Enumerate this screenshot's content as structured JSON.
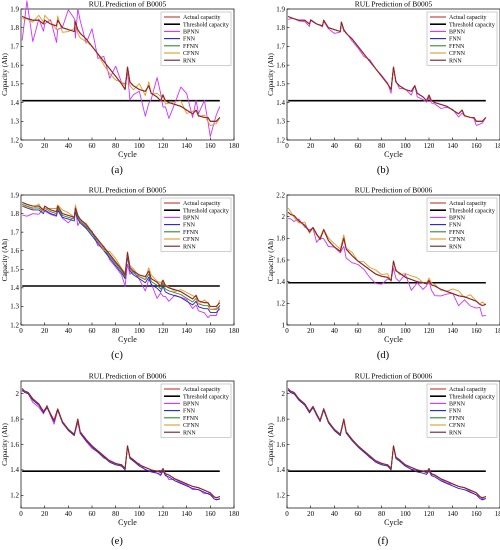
{
  "colors": {
    "actual": "#c0392b",
    "threshold": "#000000",
    "bpnn": "#cc33ff",
    "fnn": "#2222cc",
    "ffnn": "#2e8b2e",
    "cfnn": "#e09a22",
    "rnn": "#6b1f2b"
  },
  "chart_data": [
    {
      "panel_label": "(a)",
      "type": "line",
      "title": "RUL Prediction of B0005",
      "xlabel": "Cycle",
      "ylabel": "Capacity (Ah)",
      "xlim": [
        0,
        180
      ],
      "ylim": [
        1.2,
        1.9
      ],
      "xticks": [
        "0",
        "20",
        "40",
        "60",
        "80",
        "100",
        "120",
        "140",
        "160",
        "180"
      ],
      "yticks": [
        "1.2",
        "1.3",
        "1.4",
        "1.5",
        "1.6",
        "1.7",
        "1.8",
        "1.9"
      ],
      "threshold": 1.41,
      "legend_position": "top-right",
      "legend": [
        "Actual capacity",
        "Threshold capacity",
        "BPNN",
        "FNN",
        "FFNN",
        "CFNN",
        "RNN"
      ],
      "x": [
        1,
        5,
        10,
        15,
        19,
        20,
        25,
        30,
        31,
        35,
        40,
        45,
        46,
        48,
        50,
        55,
        60,
        65,
        70,
        75,
        80,
        85,
        88,
        90,
        92,
        95,
        100,
        105,
        108,
        110,
        115,
        118,
        120,
        122,
        125,
        130,
        135,
        140,
        145,
        148,
        150,
        155,
        158,
        160,
        165,
        168
      ],
      "actual": [
        1.86,
        1.85,
        1.84,
        1.84,
        1.82,
        1.84,
        1.82,
        1.81,
        1.84,
        1.8,
        1.79,
        1.78,
        1.83,
        1.79,
        1.77,
        1.74,
        1.7,
        1.66,
        1.62,
        1.58,
        1.54,
        1.5,
        1.47,
        1.59,
        1.51,
        1.49,
        1.47,
        1.46,
        1.49,
        1.45,
        1.43,
        1.41,
        1.44,
        1.41,
        1.4,
        1.39,
        1.38,
        1.36,
        1.34,
        1.36,
        1.33,
        1.32,
        1.32,
        1.3,
        1.3,
        1.32
      ],
      "spikes": {
        "bpnn": 0.12,
        "fnn": 0.0,
        "cfnn": 0.03
      },
      "offsets": {
        "bpnn": -0.008,
        "fnn": 0.0,
        "ffnn": 0.0,
        "cfnn": 0.002,
        "rnn": 0.0
      }
    },
    {
      "panel_label": "(b)",
      "type": "line",
      "title": "RUL Prediction of B0005",
      "xlabel": "Cycle",
      "ylabel": "Capacity (Ah)",
      "xlim": [
        0,
        180
      ],
      "ylim": [
        1.2,
        1.9
      ],
      "xticks": [
        "0",
        "20",
        "40",
        "60",
        "80",
        "100",
        "120",
        "140",
        "160",
        "180"
      ],
      "yticks": [
        "1.2",
        "1.3",
        "1.4",
        "1.5",
        "1.6",
        "1.7",
        "1.8",
        "1.9"
      ],
      "threshold": 1.41,
      "legend_position": "top-right",
      "legend": [
        "Actual capacity",
        "Threshold capacity",
        "BPNN",
        "FNN",
        "FFNN",
        "CFNN",
        "RNN"
      ],
      "x": [
        1,
        5,
        10,
        15,
        19,
        20,
        25,
        30,
        31,
        35,
        40,
        45,
        46,
        48,
        50,
        55,
        60,
        65,
        70,
        75,
        80,
        85,
        88,
        90,
        92,
        95,
        100,
        105,
        108,
        110,
        115,
        118,
        120,
        122,
        125,
        130,
        135,
        140,
        145,
        148,
        150,
        155,
        158,
        160,
        165,
        168
      ],
      "actual": [
        1.86,
        1.85,
        1.84,
        1.84,
        1.82,
        1.84,
        1.82,
        1.81,
        1.84,
        1.8,
        1.79,
        1.78,
        1.83,
        1.79,
        1.77,
        1.74,
        1.7,
        1.66,
        1.62,
        1.58,
        1.54,
        1.5,
        1.47,
        1.59,
        1.51,
        1.49,
        1.47,
        1.46,
        1.49,
        1.45,
        1.43,
        1.41,
        1.44,
        1.41,
        1.4,
        1.39,
        1.38,
        1.36,
        1.34,
        1.36,
        1.33,
        1.32,
        1.32,
        1.3,
        1.3,
        1.32
      ],
      "spikes": {
        "bpnn": 0.015,
        "fnn": 0.0,
        "cfnn": 0.0
      },
      "offsets": {
        "bpnn": -0.006,
        "fnn": 0.0,
        "ffnn": 0.0,
        "cfnn": 0.0,
        "rnn": 0.0
      }
    },
    {
      "panel_label": "(c)",
      "type": "line",
      "title": "RUL Prediction of B0005",
      "xlabel": "Cycle",
      "ylabel": "Capacity (Ah)",
      "xlim": [
        0,
        180
      ],
      "ylim": [
        1.2,
        1.9
      ],
      "xticks": [
        "0",
        "20",
        "40",
        "60",
        "80",
        "100",
        "120",
        "140",
        "160",
        "180"
      ],
      "yticks": [
        "1.2",
        "1.3",
        "1.4",
        "1.5",
        "1.6",
        "1.7",
        "1.8",
        "1.9"
      ],
      "threshold": 1.41,
      "legend_position": "top-right",
      "legend": [
        "Actual capacity",
        "Threshold capacity",
        "BPNN",
        "FNN",
        "FFNN",
        "CFNN",
        "RNN"
      ],
      "x": [
        1,
        5,
        10,
        15,
        19,
        20,
        25,
        30,
        31,
        35,
        40,
        45,
        46,
        48,
        50,
        55,
        60,
        65,
        70,
        75,
        80,
        85,
        88,
        90,
        92,
        95,
        100,
        105,
        108,
        110,
        115,
        118,
        120,
        122,
        125,
        130,
        135,
        140,
        145,
        148,
        150,
        155,
        158,
        160,
        165,
        168
      ],
      "actual": [
        1.86,
        1.85,
        1.84,
        1.84,
        1.82,
        1.84,
        1.82,
        1.81,
        1.84,
        1.8,
        1.79,
        1.78,
        1.83,
        1.79,
        1.77,
        1.74,
        1.7,
        1.66,
        1.62,
        1.58,
        1.54,
        1.5,
        1.47,
        1.59,
        1.51,
        1.49,
        1.47,
        1.46,
        1.49,
        1.45,
        1.43,
        1.41,
        1.44,
        1.41,
        1.4,
        1.39,
        1.38,
        1.36,
        1.34,
        1.36,
        1.33,
        1.32,
        1.32,
        1.3,
        1.3,
        1.32
      ],
      "spikes": {
        "bpnn": 0.04,
        "fnn": 0.0,
        "cfnn": 0.02
      },
      "offsets": {
        "bpnn": -0.03,
        "fnn": -0.02,
        "ffnn": -0.01,
        "cfnn": 0.0,
        "rnn": 0.0
      }
    },
    {
      "panel_label": "(d)",
      "type": "line",
      "title": "RUL Prediction of B0006",
      "xlabel": "Cycle",
      "ylabel": "Capacity (Ah)",
      "xlim": [
        0,
        180
      ],
      "ylim": [
        1.0,
        2.2
      ],
      "xticks": [
        "0",
        "20",
        "40",
        "60",
        "80",
        "100",
        "120",
        "140",
        "160",
        "180"
      ],
      "yticks": [
        "1",
        "1.2",
        "1.4",
        "1.6",
        "1.8",
        "2",
        "2.2"
      ],
      "threshold": 1.39,
      "legend_position": "top-right",
      "legend": [
        "Actual capacity",
        "Threshold capacity",
        "BPNN",
        "FNN",
        "FFNN",
        "CFNN",
        "RNN"
      ],
      "x": [
        1,
        3,
        6,
        10,
        15,
        19,
        22,
        25,
        28,
        31,
        35,
        40,
        45,
        48,
        50,
        55,
        60,
        65,
        70,
        75,
        80,
        85,
        88,
        90,
        92,
        95,
        100,
        105,
        110,
        115,
        118,
        120,
        122,
        125,
        130,
        135,
        140,
        145,
        150,
        155,
        160,
        163,
        165,
        168
      ],
      "actual": [
        2.04,
        2.02,
        2.01,
        1.96,
        1.92,
        1.86,
        1.9,
        1.84,
        1.79,
        1.88,
        1.78,
        1.72,
        1.68,
        1.8,
        1.7,
        1.64,
        1.59,
        1.55,
        1.51,
        1.47,
        1.45,
        1.44,
        1.41,
        1.59,
        1.5,
        1.48,
        1.44,
        1.42,
        1.4,
        1.39,
        1.38,
        1.41,
        1.37,
        1.36,
        1.33,
        1.31,
        1.29,
        1.27,
        1.26,
        1.24,
        1.22,
        1.19,
        1.18,
        1.19
      ],
      "spikes": {
        "bpnn": 0.06,
        "fnn": 0.0,
        "cfnn": 0.03
      },
      "offsets": {
        "bpnn": -0.03,
        "fnn": 0.0,
        "ffnn": 0.0,
        "cfnn": 0.01,
        "rnn": 0.0
      }
    },
    {
      "panel_label": "(e)",
      "type": "line",
      "title": "RUL Prediction of B0006",
      "xlabel": "Cycle",
      "ylabel": "Capacity (Ah)",
      "xlim": [
        0,
        180
      ],
      "ylim": [
        1.1,
        2.1
      ],
      "xticks": [
        "0",
        "20",
        "40",
        "60",
        "80",
        "100",
        "120",
        "140",
        "160",
        "180"
      ],
      "yticks": [
        "1.2",
        "1.4",
        "1.6",
        "1.8",
        "2"
      ],
      "threshold": 1.39,
      "legend_position": "top-right",
      "legend": [
        "Actual capacity",
        "Threshold capacity",
        "BPNN",
        "FNN",
        "FFNN",
        "CFNN",
        "RNN"
      ],
      "x": [
        1,
        3,
        6,
        10,
        15,
        19,
        22,
        25,
        28,
        31,
        35,
        40,
        45,
        48,
        50,
        55,
        60,
        65,
        70,
        75,
        80,
        85,
        88,
        90,
        92,
        95,
        100,
        105,
        110,
        115,
        118,
        120,
        122,
        125,
        130,
        135,
        140,
        145,
        150,
        155,
        160,
        163,
        165,
        168
      ],
      "actual": [
        2.04,
        2.02,
        2.01,
        1.96,
        1.92,
        1.86,
        1.9,
        1.84,
        1.79,
        1.88,
        1.78,
        1.72,
        1.68,
        1.8,
        1.7,
        1.64,
        1.59,
        1.55,
        1.51,
        1.47,
        1.45,
        1.44,
        1.41,
        1.59,
        1.5,
        1.48,
        1.44,
        1.42,
        1.4,
        1.39,
        1.38,
        1.41,
        1.37,
        1.36,
        1.33,
        1.31,
        1.29,
        1.27,
        1.26,
        1.24,
        1.22,
        1.19,
        1.18,
        1.19
      ],
      "spikes": {
        "bpnn": 0.02,
        "fnn": 0.0,
        "cfnn": 0.0
      },
      "offsets": {
        "bpnn": -0.01,
        "fnn": -0.01,
        "ffnn": 0.0,
        "cfnn": 0.0,
        "rnn": 0.0
      }
    },
    {
      "panel_label": "(f)",
      "type": "line",
      "title": "RUL Prediction of B0006",
      "xlabel": "Cycle",
      "ylabel": "Capacity (Ah)",
      "xlim": [
        0,
        180
      ],
      "ylim": [
        1.1,
        2.1
      ],
      "xticks": [
        "0",
        "20",
        "40",
        "60",
        "80",
        "100",
        "120",
        "140",
        "160",
        "180"
      ],
      "yticks": [
        "1.2",
        "1.4",
        "1.6",
        "1.8",
        "2"
      ],
      "threshold": 1.39,
      "legend_position": "top-right",
      "legend": [
        "Actual capacity",
        "Threshold capacity",
        "BPNN",
        "FNN",
        "FFNN",
        "CFNN",
        "RNN"
      ],
      "x": [
        1,
        3,
        6,
        10,
        15,
        19,
        22,
        25,
        28,
        31,
        35,
        40,
        45,
        48,
        50,
        55,
        60,
        65,
        70,
        75,
        80,
        85,
        88,
        90,
        92,
        95,
        100,
        105,
        110,
        115,
        118,
        120,
        122,
        125,
        130,
        135,
        140,
        145,
        150,
        155,
        160,
        163,
        165,
        168
      ],
      "actual": [
        2.04,
        2.02,
        2.01,
        1.96,
        1.92,
        1.86,
        1.9,
        1.84,
        1.79,
        1.88,
        1.78,
        1.72,
        1.68,
        1.8,
        1.7,
        1.64,
        1.59,
        1.55,
        1.51,
        1.47,
        1.45,
        1.44,
        1.41,
        1.59,
        1.5,
        1.48,
        1.44,
        1.42,
        1.4,
        1.39,
        1.38,
        1.41,
        1.37,
        1.36,
        1.33,
        1.31,
        1.29,
        1.27,
        1.26,
        1.24,
        1.22,
        1.19,
        1.18,
        1.19
      ],
      "spikes": {
        "bpnn": 0.01,
        "fnn": 0.0,
        "cfnn": 0.0
      },
      "offsets": {
        "bpnn": -0.005,
        "fnn": -0.01,
        "ffnn": 0.0,
        "cfnn": 0.0,
        "rnn": 0.0
      }
    }
  ]
}
